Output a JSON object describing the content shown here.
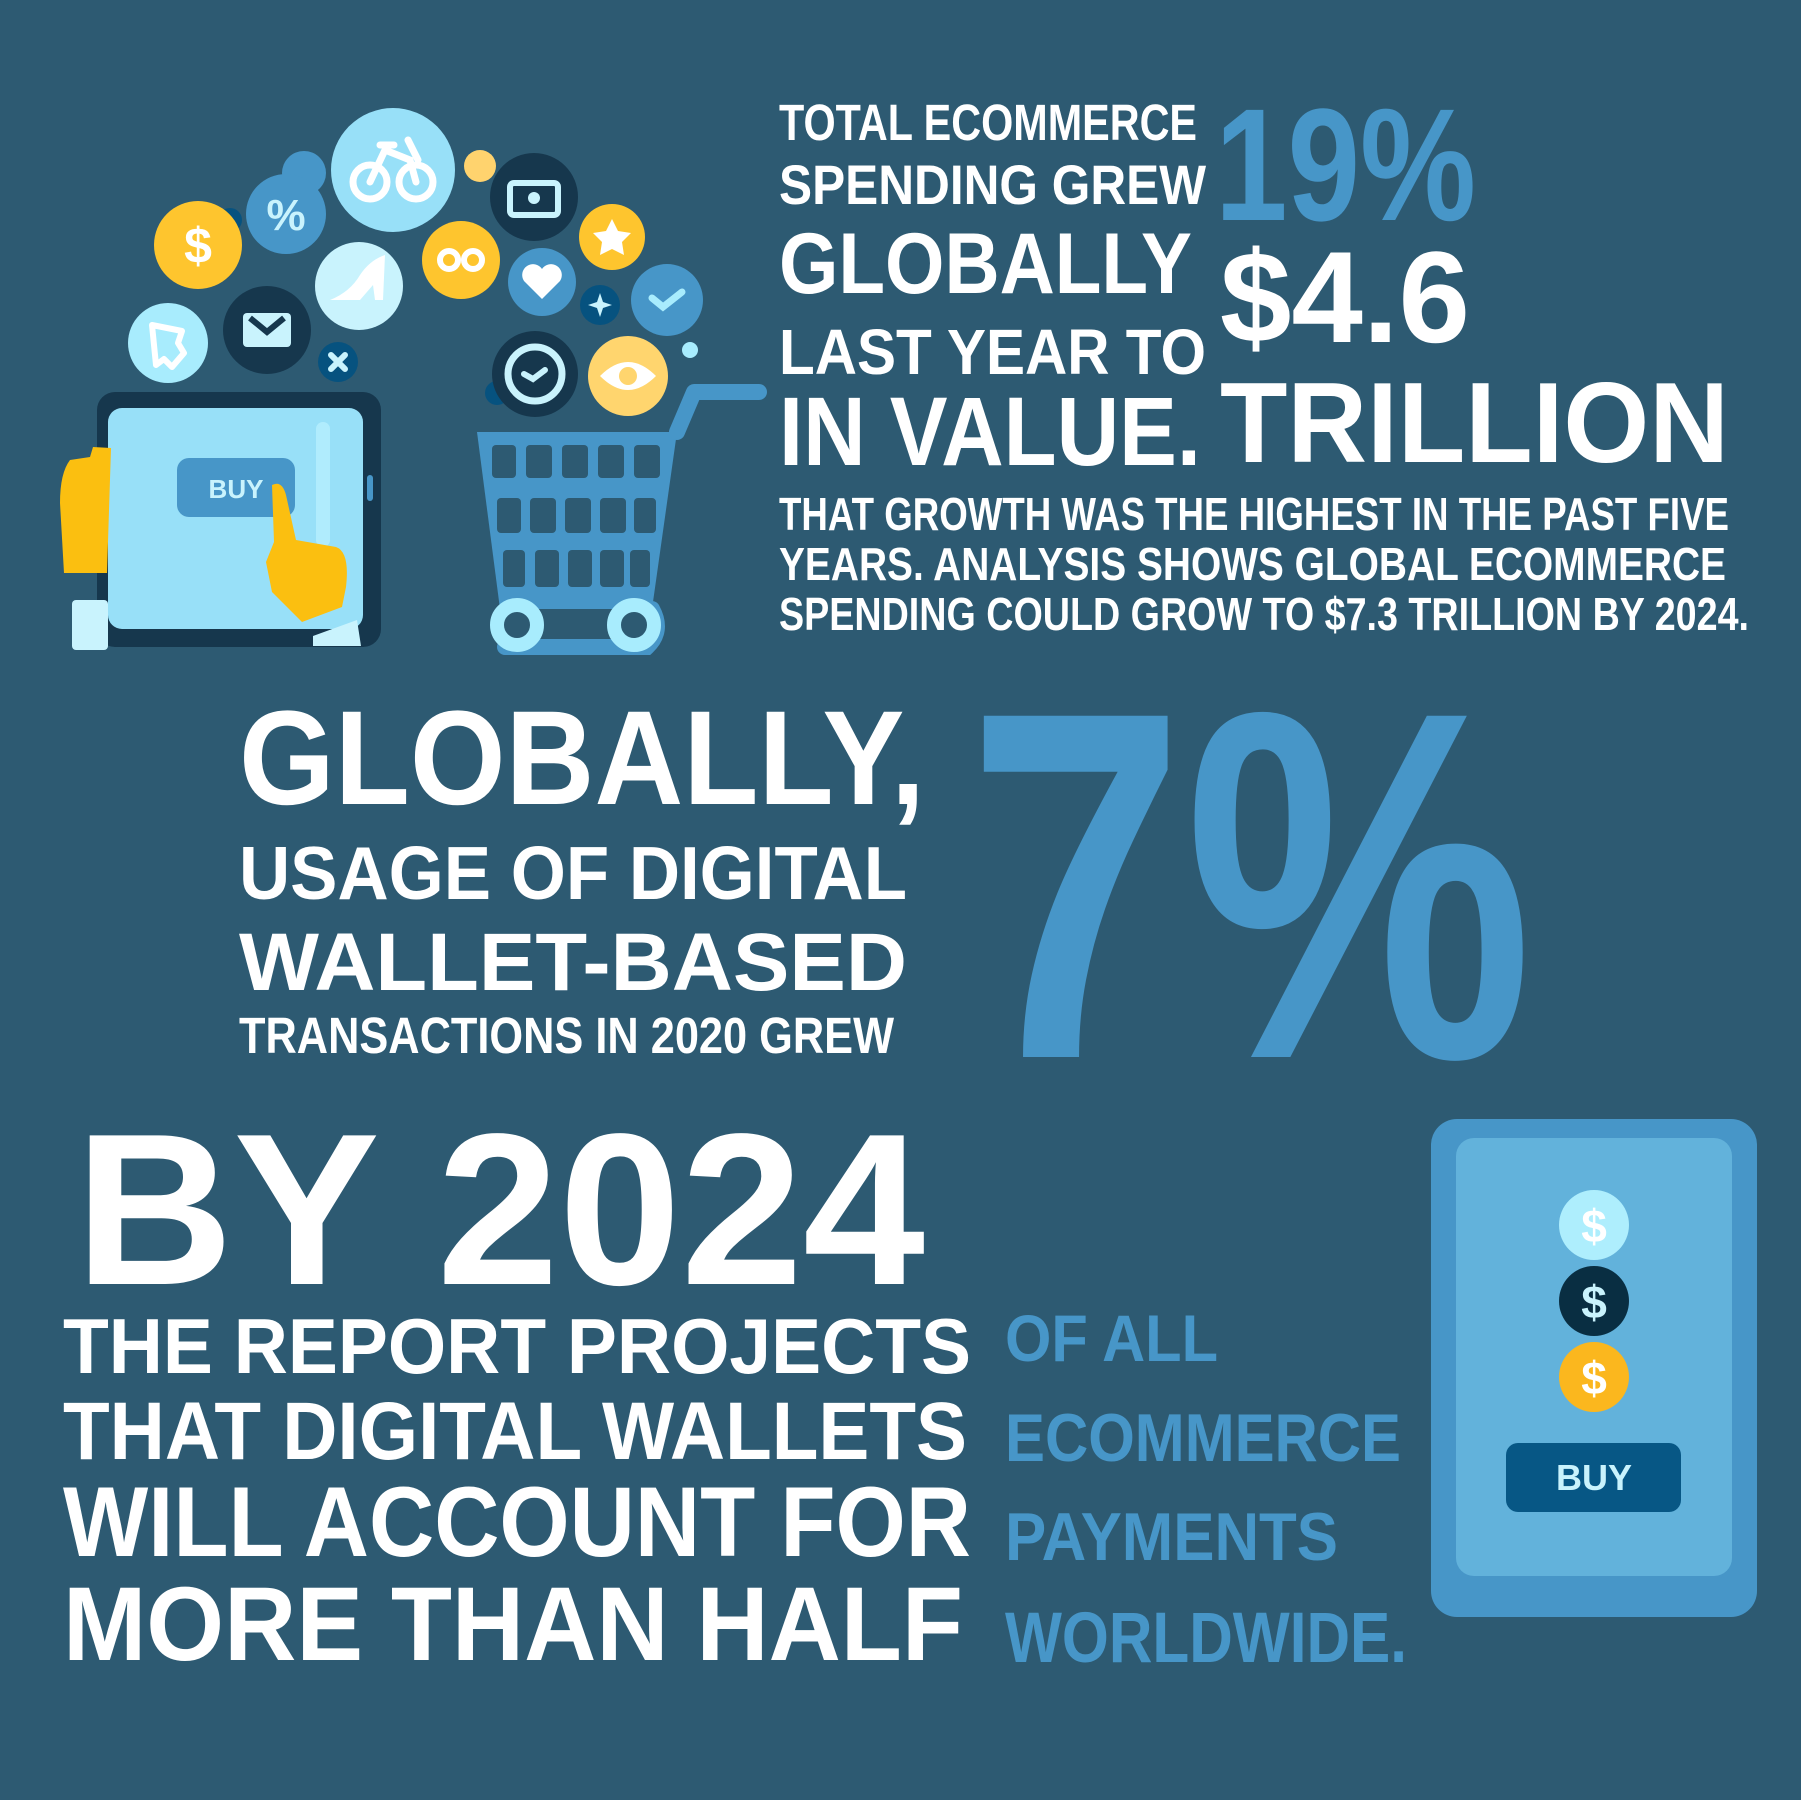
{
  "colors": {
    "background": "#2d5a72",
    "accent_blue": "#4796c8",
    "yellow": "#fec52e",
    "dark": "#16374d",
    "light_blue": "#98e0f8"
  },
  "top": {
    "lines": [
      "TOTAL ECOMMERCE",
      "SPENDING GREW",
      "GLOBALLY",
      "LAST YEAR TO",
      "IN VALUE."
    ],
    "growth": "19%",
    "value": "$4.6",
    "unit": "TRILLION",
    "paragraph": [
      "THAT GROWTH WAS THE HIGHEST IN THE PAST FIVE",
      "YEARS. ANALYSIS SHOWS GLOBAL ECOMMERCE",
      "SPENDING COULD GROW TO $7.3 TRILLION BY 2024."
    ]
  },
  "middle": {
    "lines": [
      "GLOBALLY,",
      "USAGE OF DIGITAL",
      "WALLET-BASED",
      "TRANSACTIONS IN 2020 GREW"
    ],
    "growth": "7%"
  },
  "bottom": {
    "headline": "BY 2024",
    "white_lines": [
      "THE REPORT PROJECTS",
      "THAT DIGITAL WALLETS",
      "WILL ACCOUNT FOR",
      "MORE THAN HALF"
    ],
    "blue_lines": [
      "OF ALL",
      "ECOMMERCE",
      "PAYMENTS",
      "WORLDWIDE."
    ]
  },
  "illustration": {
    "tablet_button": "BUY",
    "phone_button": "BUY",
    "coin_symbol": "$",
    "icons": [
      "bicycle-icon",
      "percent-icon",
      "dollar-icon",
      "shoe-icon",
      "camera-icon",
      "infinity-icon",
      "star-icon",
      "heart-icon",
      "check-icon",
      "sparkle-icon",
      "clipboard-icon",
      "envelope-icon",
      "close-icon",
      "clock-icon",
      "eye-icon",
      "shopping-cart-icon",
      "tablet-icon",
      "phone-icon"
    ]
  }
}
